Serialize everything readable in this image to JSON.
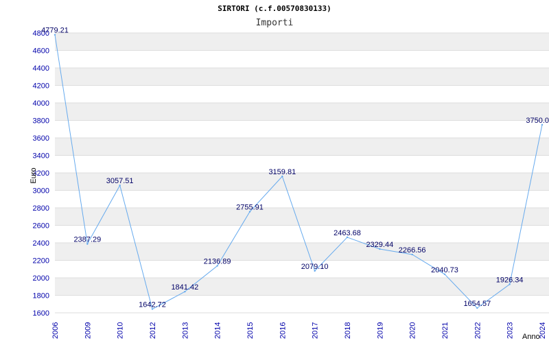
{
  "chart_data": {
    "type": "line",
    "title": "SIRTORI (c.f.00570830133)",
    "subtitle": "Importi",
    "ylabel": "Euro",
    "xlabel": "Anno",
    "ylim": [
      1600,
      4800
    ],
    "yticks": [
      1600,
      1800,
      2000,
      2200,
      2400,
      2600,
      2800,
      3000,
      3200,
      3400,
      3600,
      3800,
      4000,
      4200,
      4400,
      4600,
      4800
    ],
    "categories": [
      "2006",
      "2009",
      "2010",
      "2012",
      "2013",
      "2014",
      "2015",
      "2016",
      "2017",
      "2018",
      "2019",
      "2020",
      "2021",
      "2022",
      "2023",
      "2024"
    ],
    "values": [
      4779.21,
      2387.29,
      3057.51,
      1642.72,
      1841.42,
      2136.89,
      2755.91,
      3159.81,
      2079.1,
      2463.68,
      2329.44,
      2266.56,
      2040.73,
      1654.57,
      1926.34,
      3750.0
    ],
    "labels": [
      "4779.21",
      "2387.29",
      "3057.51",
      "1642.72",
      "1841.42",
      "2136.89",
      "2755.91",
      "3159.81",
      "2079.10",
      "2463.68",
      "2329.44",
      "2266.56",
      "2040.73",
      "1654.57",
      "1926.34",
      "3750.0"
    ],
    "grid": true,
    "colors": {
      "line": "#66aaee",
      "band": "#efefef",
      "grid": "#dddddd",
      "tick": "#0000aa",
      "label": "#000066"
    }
  }
}
